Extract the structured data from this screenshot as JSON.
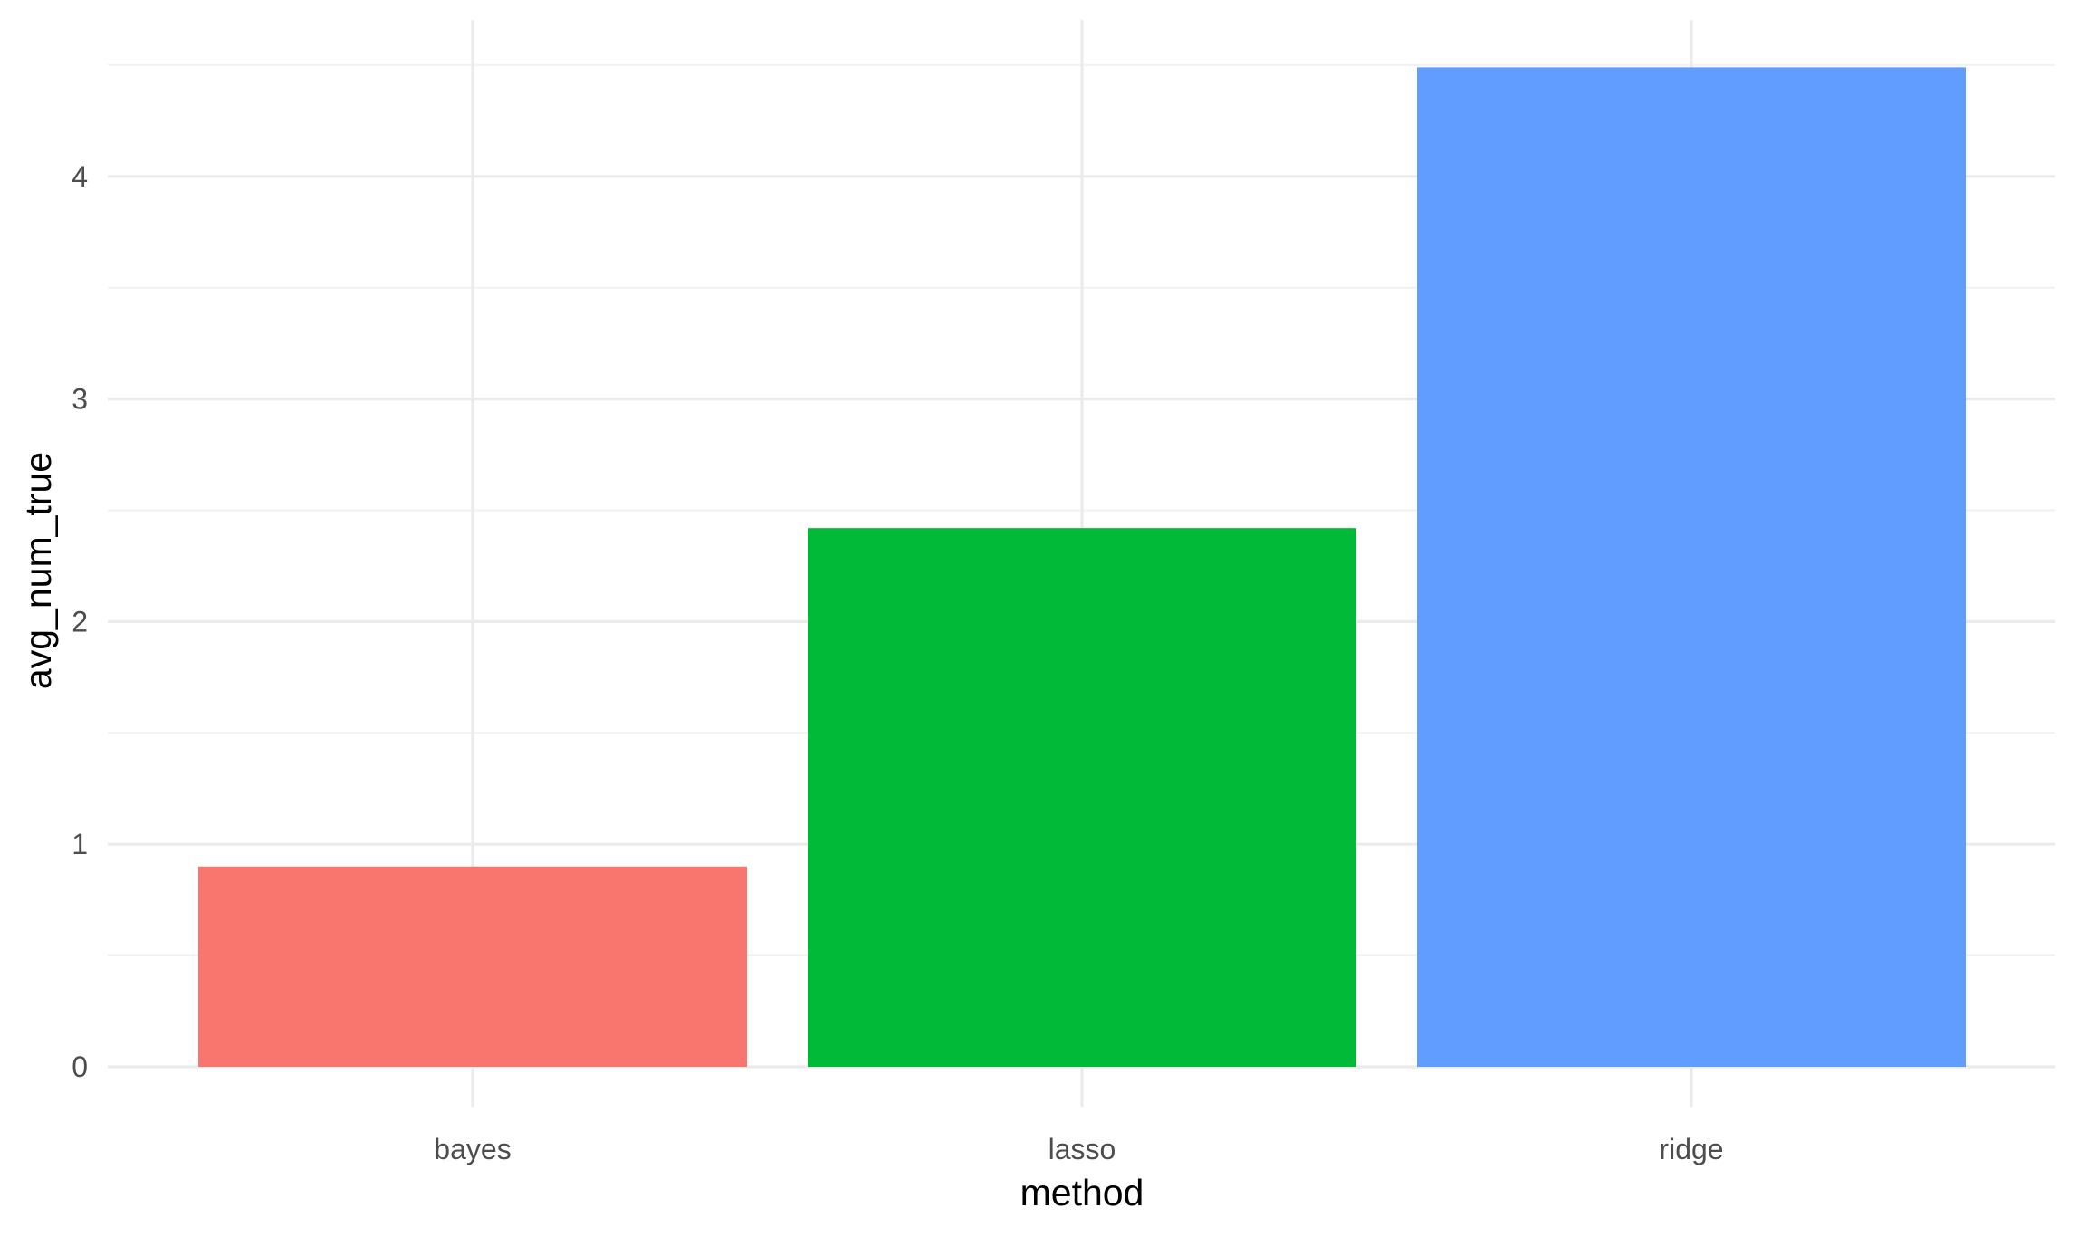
{
  "chart_data": {
    "type": "bar",
    "xlabel": "method",
    "ylabel": "avg_num_true",
    "categories": [
      "bayes",
      "lasso",
      "ridge"
    ],
    "values": [
      0.9,
      2.42,
      4.49
    ],
    "colors": [
      "#F8766D",
      "#00BA38",
      "#619CFF"
    ],
    "ylim": [
      0,
      4.5
    ],
    "yticks": [
      0,
      1,
      2,
      3,
      4
    ],
    "ytick_labels": [
      "0",
      "1",
      "2",
      "3",
      "4"
    ],
    "grid": true,
    "legend": "none",
    "theme": {
      "background": "#FFFFFF",
      "grid_major_color": "#EBEBEB",
      "grid_minor_color": "#F2F2F2"
    }
  }
}
